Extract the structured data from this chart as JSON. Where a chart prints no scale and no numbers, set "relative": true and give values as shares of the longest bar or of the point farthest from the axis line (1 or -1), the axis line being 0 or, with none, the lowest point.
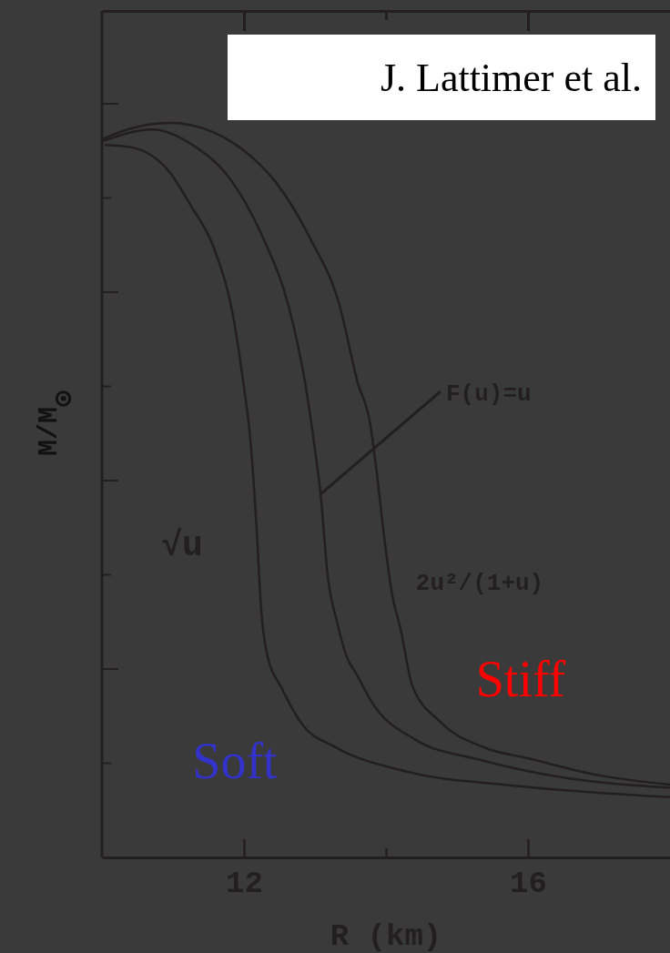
{
  "chart_data": {
    "type": "line",
    "xlabel": "R (km)",
    "ylabel": "M/M$_{⊙}$",
    "relative": true,
    "xlim": [
      10,
      18
    ],
    "xticks": [
      12,
      {
        "value": 14,
        "label": null
      },
      16
    ],
    "grid": false,
    "marker": "none",
    "line_style": "solid",
    "series": [
      {
        "color": "#231f20",
        "x": [
          10.04,
          10.4,
          10.96,
          11.26,
          11.58,
          11.86,
          11.99,
          12.09,
          12.18,
          12.24,
          12.32,
          12.54,
          12.83,
          13.27,
          14.33,
          15.78,
          18
        ],
        "values": [
          0.97,
          0.967,
          0.932,
          0.886,
          0.829,
          0.73,
          0.647,
          0.569,
          0.445,
          0.341,
          0.279,
          0.229,
          0.18,
          0.151,
          0.116,
          0.098,
          0.082
        ]
      },
      {
        "color": "#231f20",
        "x": [
          10.01,
          10.71,
          11.29,
          11.81,
          12.28,
          12.63,
          12.86,
          13.01,
          13.08,
          13.18,
          13.31,
          13.44,
          13.6,
          13.79,
          14.42,
          15.32,
          16.42,
          18
        ],
        "values": [
          0.975,
          0.991,
          0.969,
          0.923,
          0.841,
          0.75,
          0.647,
          0.548,
          0.494,
          0.383,
          0.321,
          0.275,
          0.247,
          0.213,
          0.16,
          0.133,
          0.11,
          0.095
        ]
      },
      {
        "color": "#231f20",
        "x": [
          10.01,
          10.36,
          10.96,
          11.55,
          12.15,
          12.45,
          12.92,
          13.35,
          13.6,
          13.78,
          13.86,
          13.97,
          14.08,
          14.21,
          14.37,
          14.76,
          15.4,
          16,
          16.99,
          18
        ],
        "values": [
          0.978,
          0.991,
          1,
          0.988,
          0.95,
          0.919,
          0.845,
          0.75,
          0.647,
          0.589,
          0.532,
          0.44,
          0.362,
          0.309,
          0.234,
          0.185,
          0.149,
          0.135,
          0.112,
          0.099
        ]
      }
    ],
    "annotations": [
      "J. Lattimer et al.",
      "√u",
      "F(u)=u",
      "2u²/(1+u)",
      "Stiff",
      "Soft"
    ]
  }
}
